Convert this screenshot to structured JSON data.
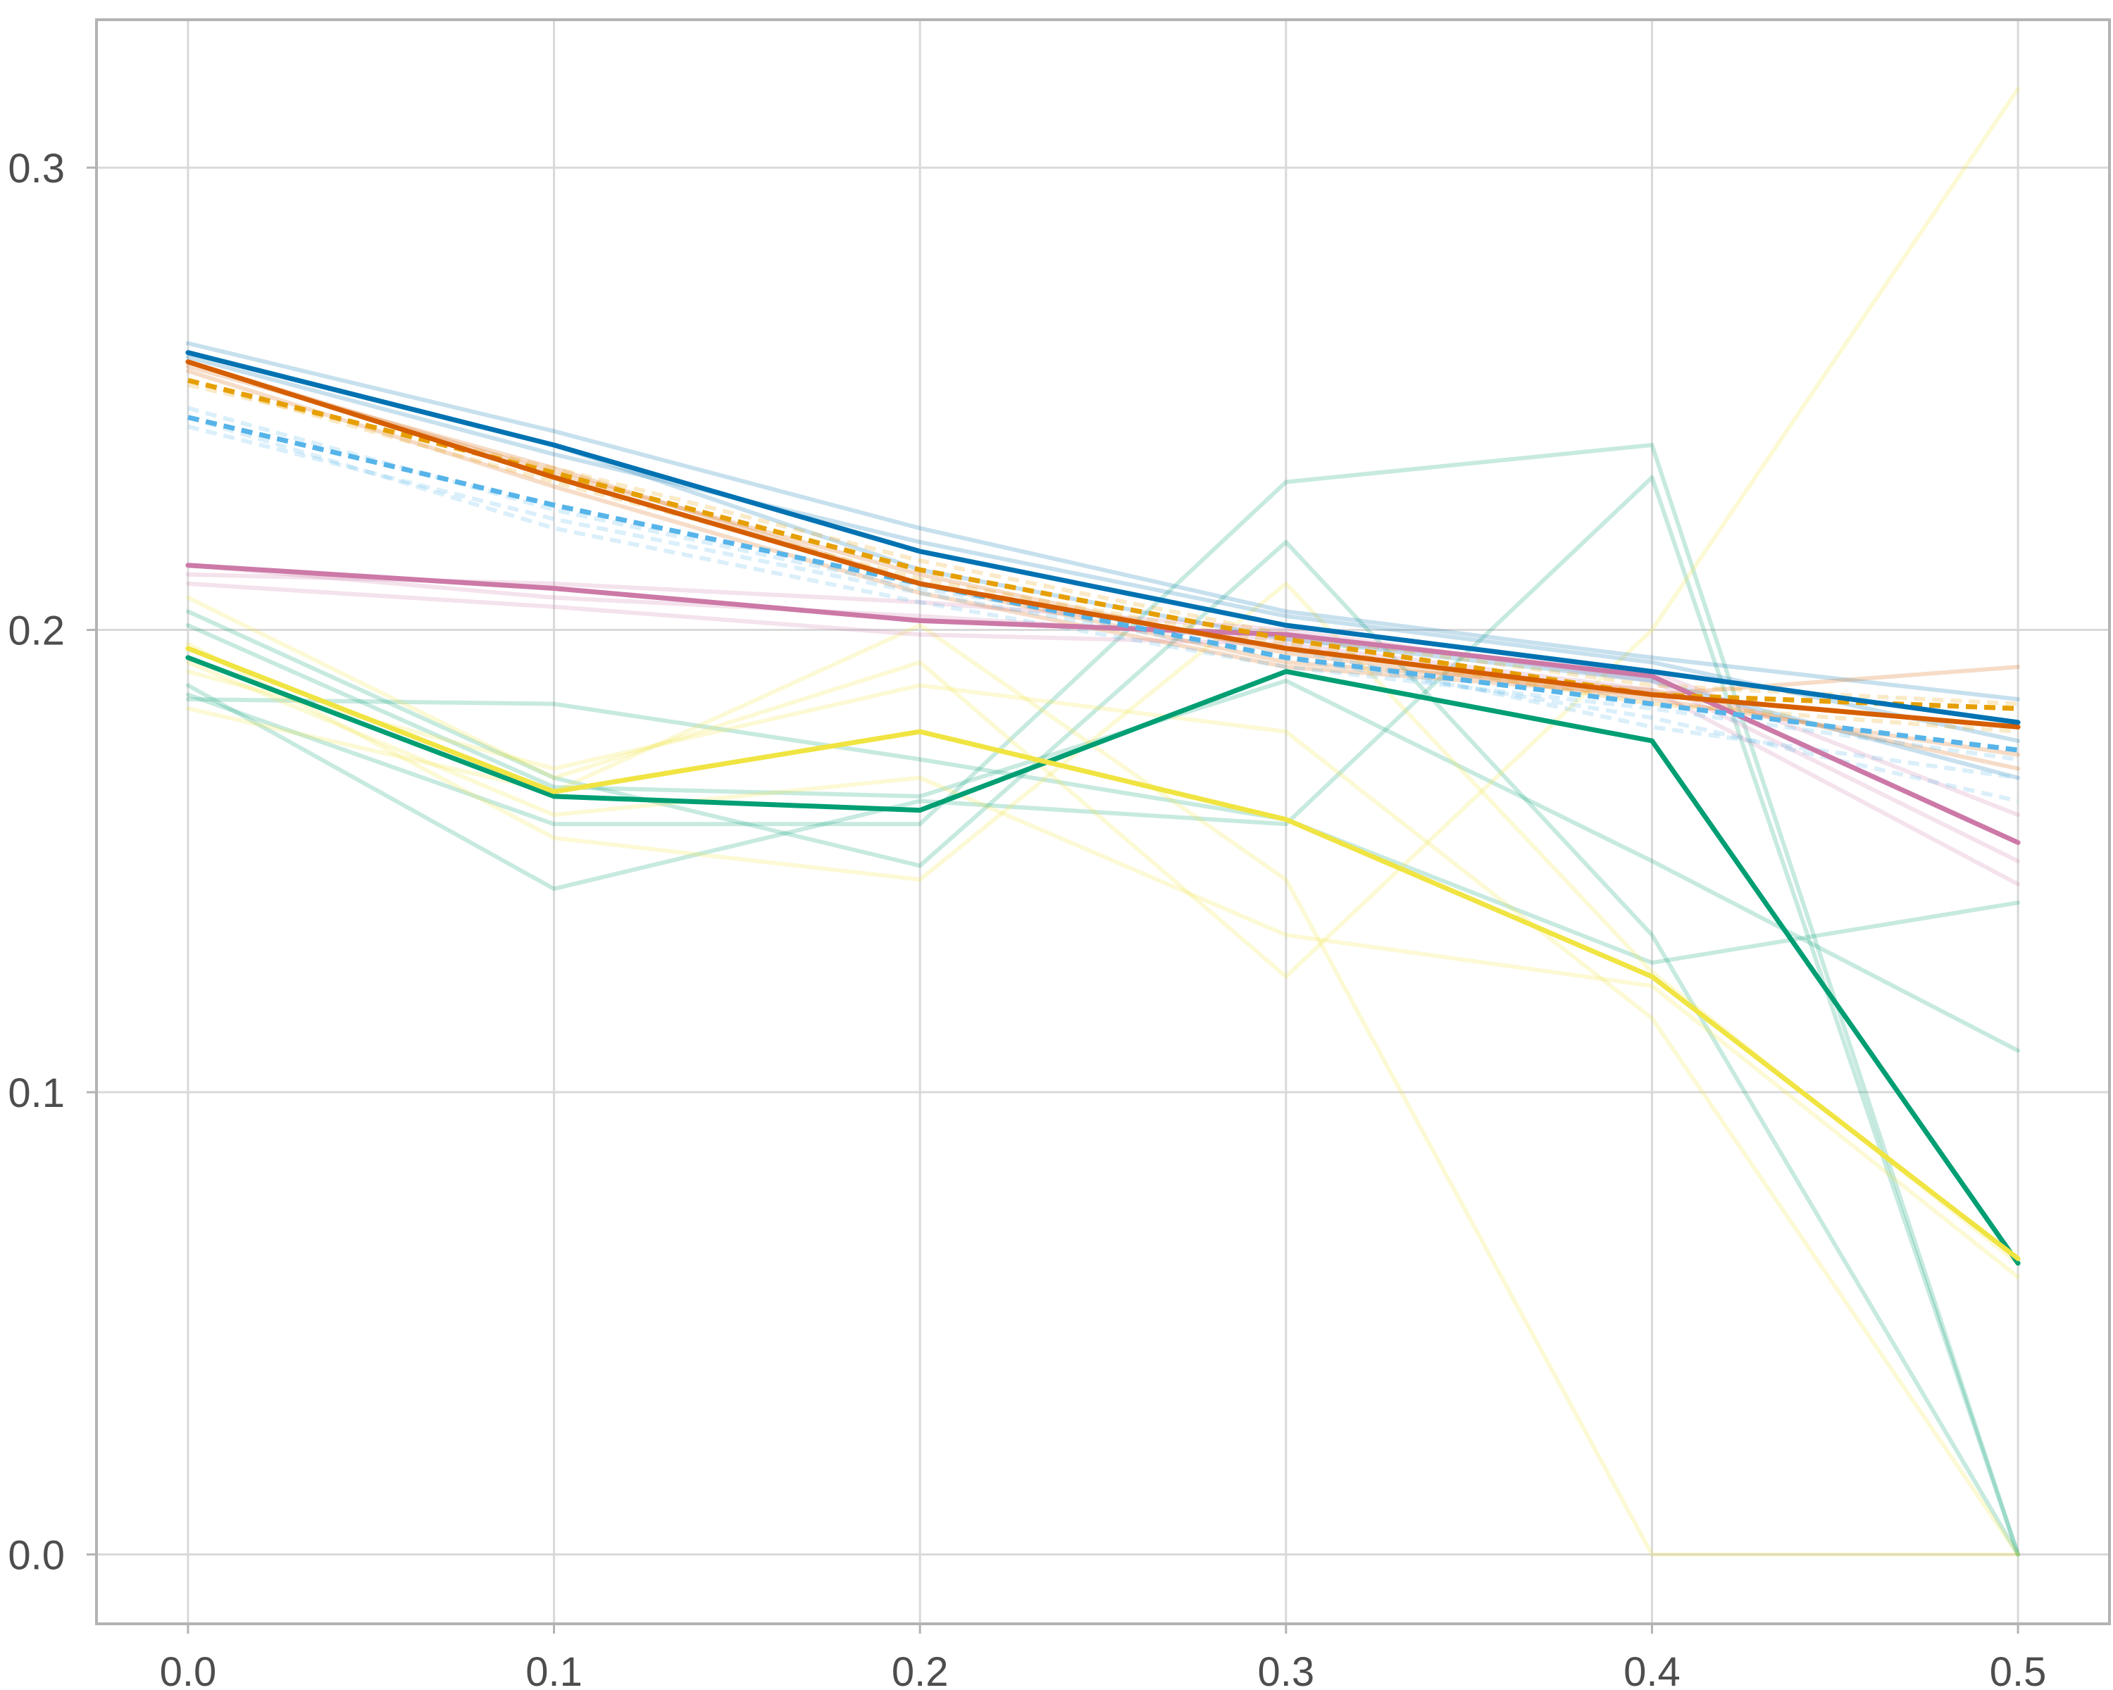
{
  "chart_data": {
    "type": "line",
    "title": "",
    "xlabel": "",
    "ylabel": "",
    "xlim": [
      -0.025,
      0.525
    ],
    "ylim": [
      -0.015,
      0.332
    ],
    "x_ticks": [
      "0.0",
      "0.1",
      "0.2",
      "0.3",
      "0.4",
      "0.5"
    ],
    "y_ticks": [
      "0.0",
      "0.1",
      "0.2",
      "0.3"
    ],
    "grid": true,
    "legend": "none",
    "colors": {
      "blue": "#0072B2",
      "vermillion": "#D55E00",
      "orange": "#E69F00",
      "sky_blue": "#56B4E9",
      "purple": "#CC79A7",
      "yellow": "#F0E442",
      "green": "#009E73"
    },
    "x": [
      0.0,
      0.1,
      0.2,
      0.3,
      0.4,
      0.5
    ],
    "series": [
      {
        "color": "#009E73",
        "style": "faint",
        "values": [
          0.186,
          0.158,
          0.158,
          0.232,
          0.24,
          0.0
        ]
      },
      {
        "color": "#009E73",
        "style": "faint",
        "values": [
          0.204,
          0.168,
          0.149,
          0.219,
          0.134,
          0.0
        ]
      },
      {
        "color": "#009E73",
        "style": "faint",
        "values": [
          0.188,
          0.144,
          0.163,
          0.158,
          0.233,
          0.0
        ]
      },
      {
        "color": "#009E73",
        "style": "faint",
        "values": [
          0.185,
          0.184,
          0.172,
          0.159,
          0.128,
          0.141
        ]
      },
      {
        "color": "#009E73",
        "style": "faint",
        "values": [
          0.201,
          0.166,
          0.164,
          0.189,
          0.15,
          0.109
        ]
      },
      {
        "color": "#F0E442",
        "style": "faint",
        "values": [
          0.207,
          0.168,
          0.193,
          0.125,
          0.2,
          0.317
        ]
      },
      {
        "color": "#F0E442",
        "style": "faint",
        "values": [
          0.183,
          0.165,
          0.201,
          0.146,
          0.0,
          0.0
        ]
      },
      {
        "color": "#F0E442",
        "style": "faint",
        "values": [
          0.191,
          0.17,
          0.188,
          0.178,
          0.116,
          0.0
        ]
      },
      {
        "color": "#F0E442",
        "style": "faint",
        "values": [
          0.197,
          0.155,
          0.146,
          0.21,
          0.126,
          0.063
        ]
      },
      {
        "color": "#F0E442",
        "style": "faint",
        "values": [
          0.193,
          0.16,
          0.168,
          0.134,
          0.123,
          0.06
        ]
      },
      {
        "color": "#CC79A7",
        "style": "faint",
        "values": [
          0.212,
          0.21,
          0.206,
          0.2,
          0.189,
          0.15
        ]
      },
      {
        "color": "#CC79A7",
        "style": "faint",
        "values": [
          0.21,
          0.205,
          0.199,
          0.197,
          0.187,
          0.145
        ]
      },
      {
        "color": "#CC79A7",
        "style": "faint",
        "values": [
          0.214,
          0.207,
          0.203,
          0.198,
          0.191,
          0.16
        ]
      },
      {
        "color": "#0072B2",
        "style": "faint",
        "values": [
          0.262,
          0.243,
          0.222,
          0.204,
          0.194,
          0.185
        ]
      },
      {
        "color": "#0072B2",
        "style": "faint",
        "values": [
          0.259,
          0.238,
          0.219,
          0.203,
          0.193,
          0.176
        ]
      },
      {
        "color": "#0072B2",
        "style": "faint",
        "values": [
          0.26,
          0.24,
          0.213,
          0.198,
          0.189,
          0.168
        ]
      },
      {
        "color": "#D55E00",
        "style": "faint",
        "values": [
          0.256,
          0.231,
          0.208,
          0.192,
          0.186,
          0.192
        ]
      },
      {
        "color": "#D55E00",
        "style": "faint",
        "values": [
          0.258,
          0.234,
          0.212,
          0.195,
          0.185,
          0.173
        ]
      },
      {
        "color": "#D55E00",
        "style": "faint",
        "values": [
          0.257,
          0.235,
          0.21,
          0.193,
          0.187,
          0.17
        ]
      },
      {
        "color": "#E69F00",
        "style": "faint-dashed",
        "values": [
          0.253,
          0.235,
          0.215,
          0.199,
          0.188,
          0.184
        ]
      },
      {
        "color": "#E69F00",
        "style": "faint-dashed",
        "values": [
          0.254,
          0.232,
          0.211,
          0.197,
          0.184,
          0.178
        ]
      },
      {
        "color": "#56B4E9",
        "style": "faint-dashed",
        "values": [
          0.244,
          0.224,
          0.208,
          0.194,
          0.181,
          0.163
        ]
      },
      {
        "color": "#56B4E9",
        "style": "faint-dashed",
        "values": [
          0.248,
          0.226,
          0.209,
          0.196,
          0.179,
          0.168
        ]
      },
      {
        "color": "#56B4E9",
        "style": "faint-dashed",
        "values": [
          0.246,
          0.222,
          0.206,
          0.192,
          0.183,
          0.172
        ]
      },
      {
        "color": "#009E73",
        "style": "main",
        "values": [
          0.194,
          0.164,
          0.161,
          0.191,
          0.176,
          0.063
        ]
      },
      {
        "color": "#F0E442",
        "style": "main",
        "values": [
          0.196,
          0.165,
          0.178,
          0.159,
          0.125,
          0.064
        ]
      },
      {
        "color": "#CC79A7",
        "style": "main",
        "values": [
          0.214,
          0.209,
          0.202,
          0.199,
          0.19,
          0.154
        ]
      },
      {
        "color": "#56B4E9",
        "style": "main-dashed",
        "values": [
          0.246,
          0.227,
          0.21,
          0.194,
          0.184,
          0.174
        ]
      },
      {
        "color": "#E69F00",
        "style": "main-dashed",
        "values": [
          0.254,
          0.234,
          0.213,
          0.198,
          0.186,
          0.183
        ]
      },
      {
        "color": "#D55E00",
        "style": "main",
        "values": [
          0.258,
          0.233,
          0.21,
          0.196,
          0.186,
          0.179
        ]
      },
      {
        "color": "#0072B2",
        "style": "main",
        "values": [
          0.26,
          0.24,
          0.217,
          0.201,
          0.191,
          0.18
        ]
      }
    ]
  }
}
